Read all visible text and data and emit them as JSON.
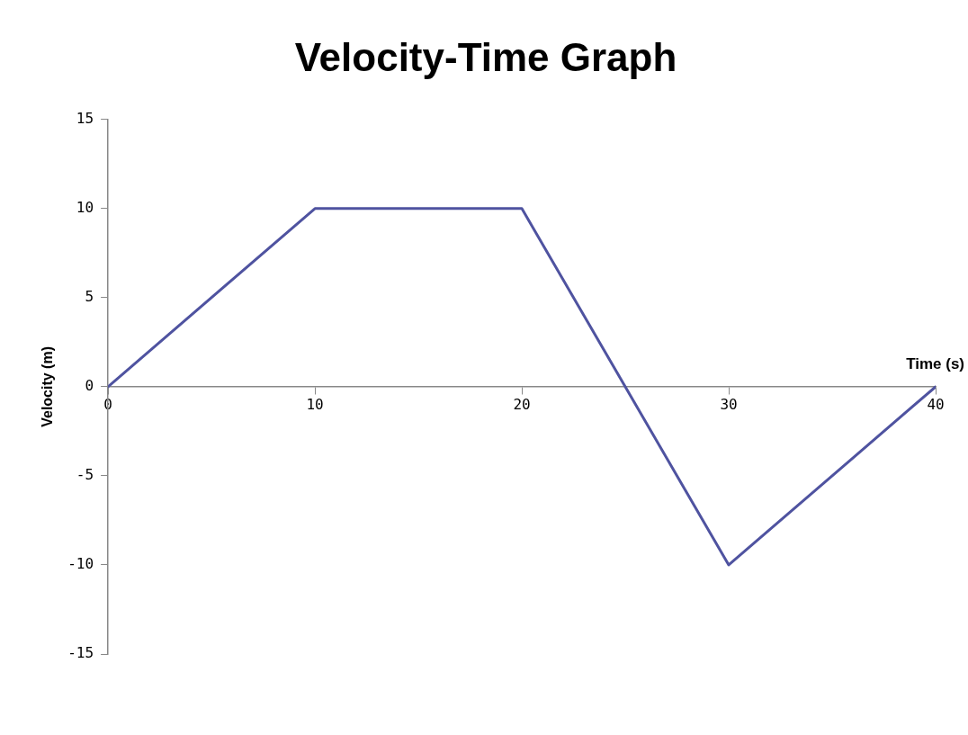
{
  "chart_data": {
    "type": "line",
    "title": "Velocity-Time Graph",
    "xlabel": "Time (s)",
    "ylabel": "Velocity (m)",
    "x": [
      0,
      10,
      20,
      30,
      40
    ],
    "series": [
      {
        "color": "#4f53a0",
        "values": [
          0,
          10,
          10,
          -10,
          0
        ]
      }
    ],
    "xlim": [
      0,
      40
    ],
    "xticks": [
      0,
      10,
      20,
      30,
      40
    ],
    "ylim": [
      -15,
      15
    ],
    "yticks": [
      -15,
      -10,
      -5,
      0,
      5,
      10,
      15
    ],
    "grid": false,
    "legend": false,
    "marker": "none",
    "line_style": "solid"
  }
}
